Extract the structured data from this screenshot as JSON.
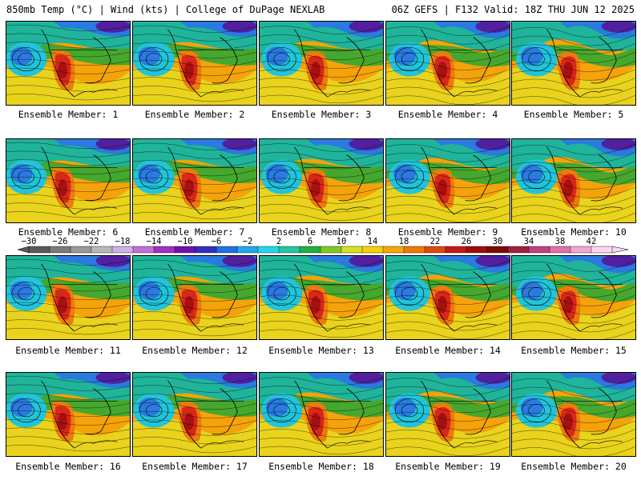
{
  "header": {
    "title_left": "850mb Temp (°C) | Wind (kts) | College of DuPage NEXLAB",
    "title_right": "06Z GEFS | F132 Valid: 18Z THU JUN 12 2025"
  },
  "label_prefix": "Ensemble Member: ",
  "members": [
    1,
    2,
    3,
    4,
    5,
    6,
    7,
    8,
    9,
    10,
    11,
    12,
    13,
    14,
    15,
    16,
    17,
    18,
    19,
    20
  ],
  "colorbar": {
    "ticks": [
      -30,
      -26,
      -22,
      -18,
      -14,
      -10,
      -6,
      -2,
      2,
      6,
      10,
      14,
      18,
      22,
      26,
      30,
      34,
      38,
      42
    ],
    "tick_labels": [
      "−30",
      "−26",
      "−22",
      "−18",
      "−14",
      "−10",
      "−6",
      "−2",
      "2",
      "6",
      "10",
      "14",
      "18",
      "22",
      "26",
      "30",
      "34",
      "38",
      "42"
    ],
    "colors": [
      "#5a5a5a",
      "#7a7a7a",
      "#999999",
      "#b8b8b8",
      "#d0b0e0",
      "#c070d8",
      "#a030c8",
      "#7010b0",
      "#3030c0",
      "#2070e0",
      "#20a8f0",
      "#20d8e8",
      "#20c8a0",
      "#20b040",
      "#80c820",
      "#d8e020",
      "#f8d000",
      "#f8a800",
      "#f07800",
      "#e04810",
      "#c81818",
      "#a00c0c",
      "#800808",
      "#a02040",
      "#c04080",
      "#e070b0",
      "#f0a8d0",
      "#f8d8f0"
    ]
  },
  "panel_colors": {
    "cold": "#5020a0",
    "blue": "#2a7adf",
    "cyan": "#21c4d9",
    "teal": "#20b49a",
    "green": "#46a72e",
    "yellow": "#e8d81e",
    "orange": "#f5a30a",
    "darkorange": "#ee7a0c",
    "red": "#d8281a",
    "darkred": "#a81010"
  }
}
